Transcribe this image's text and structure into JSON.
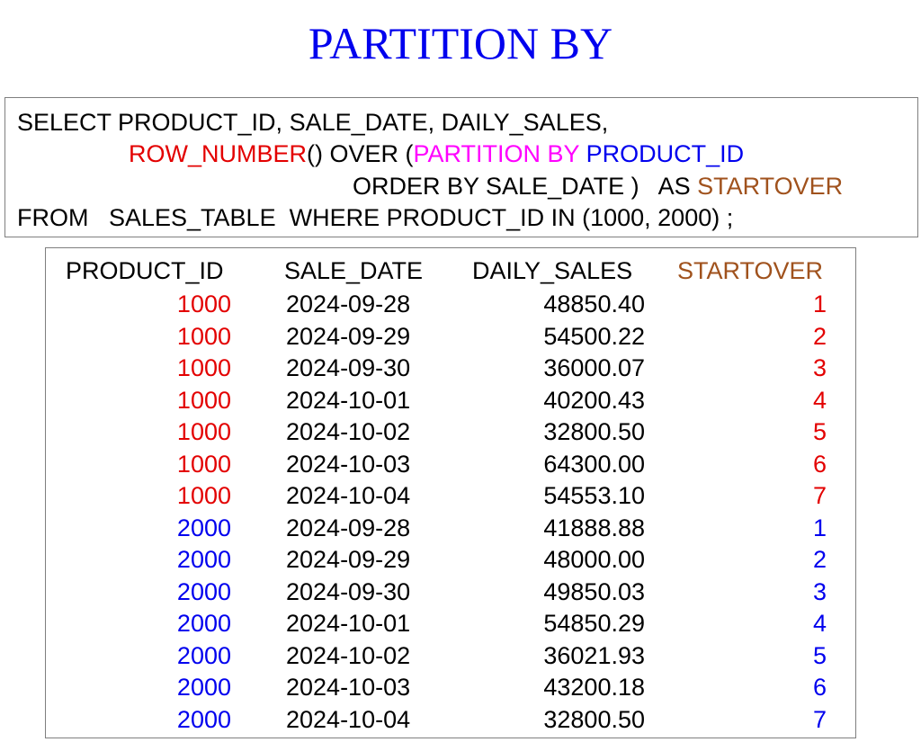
{
  "title": "PARTITION BY",
  "colors": {
    "title": "#0000ee",
    "function": "#e30000",
    "partition_keyword": "#ff00ff",
    "partition_column": "#0000ee",
    "alias": "#a0521d",
    "product_1000": "#e30000",
    "product_2000": "#0000ee"
  },
  "query": {
    "line1": "SELECT PRODUCT_ID, SALE_DATE, DAILY_SALES,",
    "line2": {
      "func": "ROW_NUMBER",
      "after_func": "() OVER (",
      "partition_kw": "PARTITION BY",
      "space": " ",
      "partition_col": "PRODUCT_ID"
    },
    "line3": {
      "text": "ORDER BY SALE_DATE )   AS ",
      "alias": "STARTOVER"
    },
    "line4": "FROM   SALES_TABLE  WHERE PRODUCT_ID IN (1000, 2000) ;"
  },
  "results": {
    "headers": [
      "PRODUCT_ID",
      "SALE_DATE",
      "DAILY_SALES",
      "STARTOVER"
    ],
    "rows": [
      [
        "1000",
        "2024-09-28",
        "48850.40",
        "1"
      ],
      [
        "1000",
        "2024-09-29",
        "54500.22",
        "2"
      ],
      [
        "1000",
        "2024-09-30",
        "36000.07",
        "3"
      ],
      [
        "1000",
        "2024-10-01",
        "40200.43",
        "4"
      ],
      [
        "1000",
        "2024-10-02",
        "32800.50",
        "5"
      ],
      [
        "1000",
        "2024-10-03",
        "64300.00",
        "6"
      ],
      [
        "1000",
        "2024-10-04",
        "54553.10",
        "7"
      ],
      [
        "2000",
        "2024-09-28",
        "41888.88",
        "1"
      ],
      [
        "2000",
        "2024-09-29",
        "48000.00",
        "2"
      ],
      [
        "2000",
        "2024-09-30",
        "49850.03",
        "3"
      ],
      [
        "2000",
        "2024-10-01",
        "54850.29",
        "4"
      ],
      [
        "2000",
        "2024-10-02",
        "36021.93",
        "5"
      ],
      [
        "2000",
        "2024-10-03",
        "43200.18",
        "6"
      ],
      [
        "2000",
        "2024-10-04",
        "32800.50",
        "7"
      ]
    ]
  }
}
